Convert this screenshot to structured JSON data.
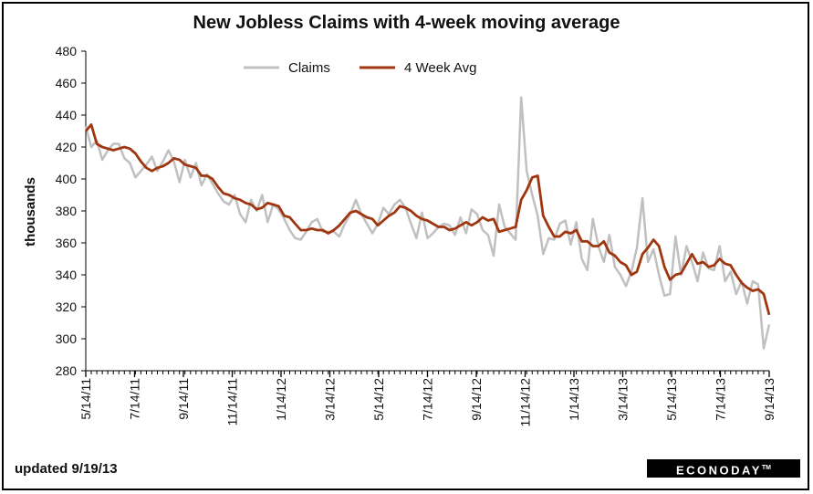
{
  "title": "New Jobless Claims with 4-week moving average",
  "updated": "updated 9/19/13",
  "brand": {
    "name": "ECONODAY",
    "mark": "TM"
  },
  "colors": {
    "claims": "#c0c0c0",
    "avg": "#a0360f",
    "axis": "#000000"
  },
  "chart_data": {
    "type": "line",
    "ylabel": "thousands",
    "ylim": [
      280,
      480
    ],
    "yticks": [
      280,
      300,
      320,
      340,
      360,
      380,
      400,
      420,
      440,
      460,
      480
    ],
    "xticks": [
      "5/14/11",
      "7/14/11",
      "9/14/11",
      "11/14/11",
      "1/14/12",
      "3/14/12",
      "5/14/12",
      "7/14/12",
      "9/14/12",
      "11/14/12",
      "1/14/13",
      "3/14/13",
      "5/14/13",
      "7/14/13",
      "9/14/13"
    ],
    "x_start": "5/14/11",
    "x_interval_weeks": 1,
    "legend_position": "top",
    "series": [
      {
        "name": "Claims",
        "values": [
          433,
          420,
          424,
          412,
          418,
          422,
          422,
          413,
          410,
          401,
          405,
          409,
          414,
          405,
          411,
          418,
          411,
          398,
          412,
          401,
          410,
          396,
          403,
          397,
          391,
          386,
          384,
          390,
          378,
          373,
          387,
          380,
          390,
          373,
          384,
          381,
          375,
          368,
          363,
          362,
          367,
          373,
          375,
          367,
          367,
          367,
          364,
          372,
          378,
          387,
          378,
          372,
          366,
          372,
          382,
          378,
          384,
          387,
          382,
          372,
          363,
          379,
          363,
          366,
          370,
          372,
          371,
          365,
          376,
          366,
          381,
          378,
          368,
          365,
          352,
          384,
          370,
          366,
          362,
          451,
          405,
          390,
          377,
          353,
          363,
          362,
          372,
          374,
          359,
          373,
          350,
          343,
          375,
          358,
          348,
          365,
          345,
          340,
          333,
          342,
          357,
          388,
          348,
          356,
          340,
          327,
          328,
          364,
          340,
          358,
          348,
          336,
          354,
          344,
          343,
          358,
          336,
          342,
          328,
          336,
          322,
          336,
          334,
          294,
          309
        ]
      },
      {
        "name": "4 Week Avg",
        "values": [
          430,
          434,
          422,
          420,
          419,
          418,
          419,
          420,
          419,
          416,
          411,
          407,
          405,
          407,
          408,
          410,
          413,
          412,
          409,
          408,
          407,
          402,
          402,
          400,
          395,
          391,
          390,
          388,
          387,
          385,
          384,
          381,
          382,
          385,
          384,
          383,
          377,
          376,
          372,
          368,
          368,
          369,
          368,
          368,
          366,
          368,
          371,
          375,
          379,
          380,
          378,
          376,
          375,
          371,
          374,
          377,
          379,
          383,
          382,
          380,
          377,
          375,
          374,
          372,
          370,
          370,
          368,
          369,
          371,
          373,
          371,
          373,
          376,
          374,
          375,
          367,
          368,
          369,
          370,
          387,
          393,
          401,
          402,
          377,
          370,
          364,
          364,
          367,
          366,
          368,
          361,
          361,
          358,
          358,
          361,
          354,
          352,
          348,
          346,
          340,
          342,
          353,
          357,
          362,
          358,
          345,
          337,
          340,
          341,
          347,
          353,
          347,
          348,
          345,
          346,
          350,
          347,
          346,
          340,
          335,
          332,
          330,
          331,
          328,
          315
        ]
      }
    ]
  }
}
